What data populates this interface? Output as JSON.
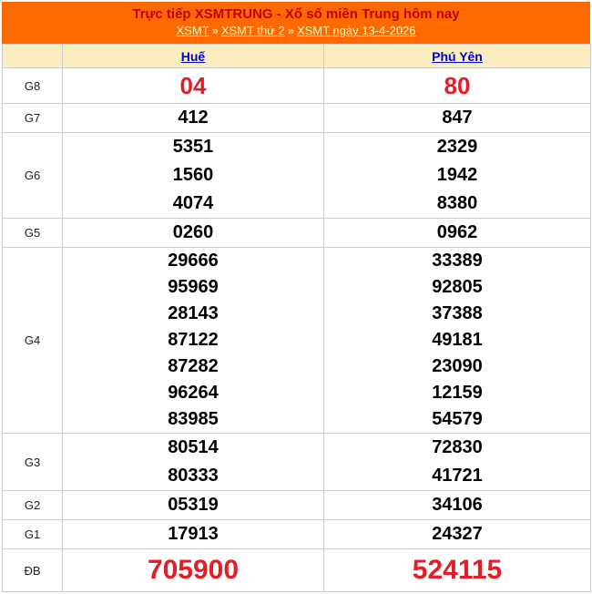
{
  "header": {
    "title": "Trực tiếp XSMTRUNG - Xổ số miền Trung hôm nay",
    "breadcrumb": {
      "separator": "»",
      "items": [
        "XSMT",
        "XSMT thứ 2",
        "XSMT ngày 13-4-2026"
      ]
    }
  },
  "colors": {
    "masthead_bg": "#ff6a00",
    "title_text": "#c00000",
    "breadcrumb_link": "#ffffcc",
    "column_header_bg": "#faeec1",
    "column_link_blue": "#0000cc",
    "highlight_red": "#e31e24",
    "number_black": "#000000",
    "border_gray": "#cccccc"
  },
  "results": {
    "columns": [
      "Huế",
      "Phú Yên"
    ],
    "rows": [
      {
        "label": "G8",
        "hue": [
          "04"
        ],
        "phuyen": [
          "80"
        ]
      },
      {
        "label": "G7",
        "hue": [
          "412"
        ],
        "phuyen": [
          "847"
        ]
      },
      {
        "label": "G6",
        "hue": [
          "5351",
          "1560",
          "4074"
        ],
        "phuyen": [
          "2329",
          "1942",
          "8380"
        ]
      },
      {
        "label": "G5",
        "hue": [
          "0260"
        ],
        "phuyen": [
          "0962"
        ]
      },
      {
        "label": "G4",
        "hue": [
          "29666",
          "95969",
          "28143",
          "87122",
          "87282",
          "96264",
          "83985"
        ],
        "phuyen": [
          "33389",
          "92805",
          "37388",
          "49181",
          "23090",
          "12159",
          "54579"
        ]
      },
      {
        "label": "G3",
        "hue": [
          "80514",
          "80333"
        ],
        "phuyen": [
          "72830",
          "41721"
        ]
      },
      {
        "label": "G2",
        "hue": [
          "05319"
        ],
        "phuyen": [
          "34106"
        ]
      },
      {
        "label": "G1",
        "hue": [
          "17913"
        ],
        "phuyen": [
          "24327"
        ]
      },
      {
        "label": "ĐB",
        "hue": [
          "705900"
        ],
        "phuyen": [
          "524115"
        ]
      }
    ]
  }
}
